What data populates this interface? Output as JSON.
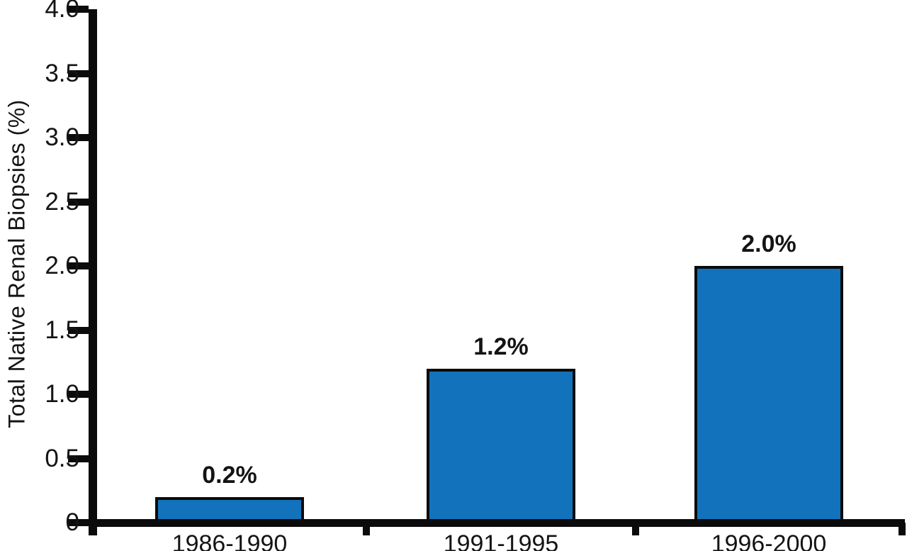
{
  "chart_data": {
    "type": "bar",
    "title": "",
    "ylabel": "Total Native Renal Biopsies (%)",
    "xlabel": "",
    "categories": [
      "1986-1990",
      "1991-1995",
      "1996-2000"
    ],
    "values": [
      0.2,
      1.2,
      2.0
    ],
    "bar_labels": [
      "0.2%",
      "1.2%",
      "2.0%"
    ],
    "ylim": [
      0,
      4.0
    ],
    "ytick_step": 0.5,
    "ytick_labels": [
      "0",
      "0.5",
      "1.0",
      "1.5",
      "2.0",
      "2.5",
      "3.0",
      "3.5",
      "4.0"
    ],
    "grid": false,
    "legend": null,
    "bar_color": "#1273BC",
    "bar_border_color": "#0b0b0b",
    "axis_color": "#0b0b0b",
    "text_color": "#141414"
  }
}
